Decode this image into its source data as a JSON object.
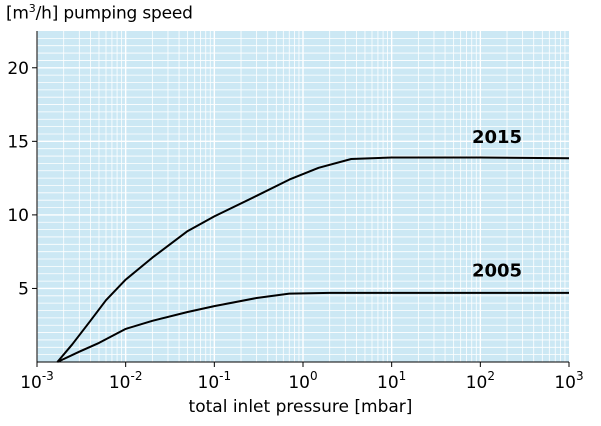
{
  "chart_data": {
    "type": "line",
    "ylabel": {
      "pre": "[m",
      "sup": "3",
      "post": "/h] pumping speed"
    },
    "xlabel": "total inlet pressure [mbar]",
    "x_scale": "log",
    "xlim": [
      0.001,
      1000
    ],
    "ylim": [
      0,
      22.5
    ],
    "y_ticks": [
      5,
      10,
      15,
      20
    ],
    "x_ticks": [
      {
        "value": 0.001,
        "base": "10",
        "exp": "-3"
      },
      {
        "value": 0.01,
        "base": "10",
        "exp": "-2"
      },
      {
        "value": 0.1,
        "base": "10",
        "exp": "-1"
      },
      {
        "value": 1,
        "base": "10",
        "exp": "0"
      },
      {
        "value": 10,
        "base": "10",
        "exp": "1"
      },
      {
        "value": 100,
        "base": "10",
        "exp": "2"
      },
      {
        "value": 1000,
        "base": "10",
        "exp": "3"
      }
    ],
    "grid": true,
    "colors": {
      "plot_background": "#cce8f4",
      "grid": "#ffffff",
      "line": "#000000"
    },
    "series": [
      {
        "name": "2015",
        "points": [
          [
            0.0017,
            0
          ],
          [
            0.0025,
            1.2
          ],
          [
            0.004,
            2.8
          ],
          [
            0.006,
            4.2
          ],
          [
            0.01,
            5.6
          ],
          [
            0.02,
            7.1
          ],
          [
            0.05,
            8.9
          ],
          [
            0.1,
            9.9
          ],
          [
            0.3,
            11.3
          ],
          [
            0.7,
            12.4
          ],
          [
            1.5,
            13.2
          ],
          [
            3.5,
            13.8
          ],
          [
            10,
            13.9
          ],
          [
            100,
            13.9
          ],
          [
            1000,
            13.85
          ]
        ]
      },
      {
        "name": "2005",
        "points": [
          [
            0.0017,
            0
          ],
          [
            0.003,
            0.7
          ],
          [
            0.005,
            1.3
          ],
          [
            0.01,
            2.25
          ],
          [
            0.02,
            2.8
          ],
          [
            0.05,
            3.4
          ],
          [
            0.1,
            3.8
          ],
          [
            0.3,
            4.35
          ],
          [
            0.7,
            4.65
          ],
          [
            2,
            4.7
          ],
          [
            10,
            4.7
          ],
          [
            1000,
            4.7
          ]
        ]
      }
    ]
  }
}
